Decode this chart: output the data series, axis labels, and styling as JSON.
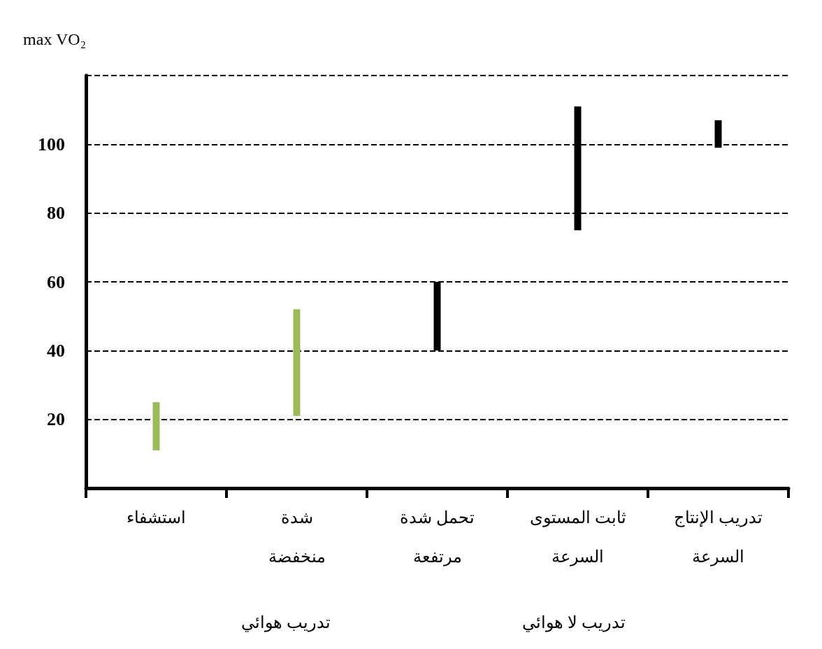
{
  "chart_data": {
    "type": "bar",
    "ylabel": "max VO₂",
    "categories": [
      "استشفاء",
      "شدة\nمنخفضة",
      "تحمل شدة\nمرتفعة",
      "ثابت المستوى\nالسرعة",
      "تدريب الإنتاج\nالسرعة"
    ],
    "base": [
      11,
      21,
      40,
      75,
      99
    ],
    "values": [
      14,
      31,
      20,
      36,
      8
    ],
    "colors": [
      "#9bbb59",
      "#9bbb59",
      "#000000",
      "#000000",
      "#000000"
    ],
    "ylim": [
      0,
      120
    ],
    "yticks": [
      20,
      40,
      60,
      80,
      100,
      {
        "value": 120,
        "label": null
      }
    ],
    "grid": "y",
    "line_style": "dashed",
    "annotations": [
      "تدريب هوائي",
      "تدريب لا هوائي"
    ]
  }
}
